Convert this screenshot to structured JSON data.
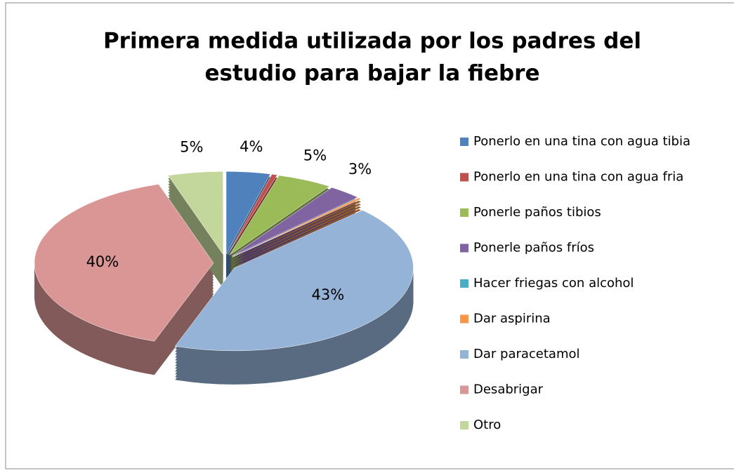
{
  "chart_data": {
    "type": "pie",
    "title": [
      "Primera medida utilizada por los padres del",
      "estudio para bajar la fiebre"
    ],
    "categories": [
      "Ponerlo en una tina con agua tibia",
      "Ponerlo en una tina con agua fria",
      "Ponerle paños tibios",
      "Ponerle paños fríos",
      "Hacer friegas con alcohol",
      "Dar aspirina",
      "Dar paracetamol",
      "Desabrigar",
      "Otro"
    ],
    "values": [
      4,
      0.5,
      5,
      3,
      0,
      0.3,
      43,
      40,
      5
    ],
    "value_labels": [
      "4%",
      null,
      "5%",
      "3%",
      null,
      null,
      "43%",
      "40%",
      "5%"
    ],
    "colors": [
      "#4F81BD",
      "#C0504D",
      "#9BBB59",
      "#8064A2",
      "#4BACC6",
      "#F79646",
      "#95B3D7",
      "#D99694",
      "#C3D69B"
    ],
    "legend": "right"
  }
}
